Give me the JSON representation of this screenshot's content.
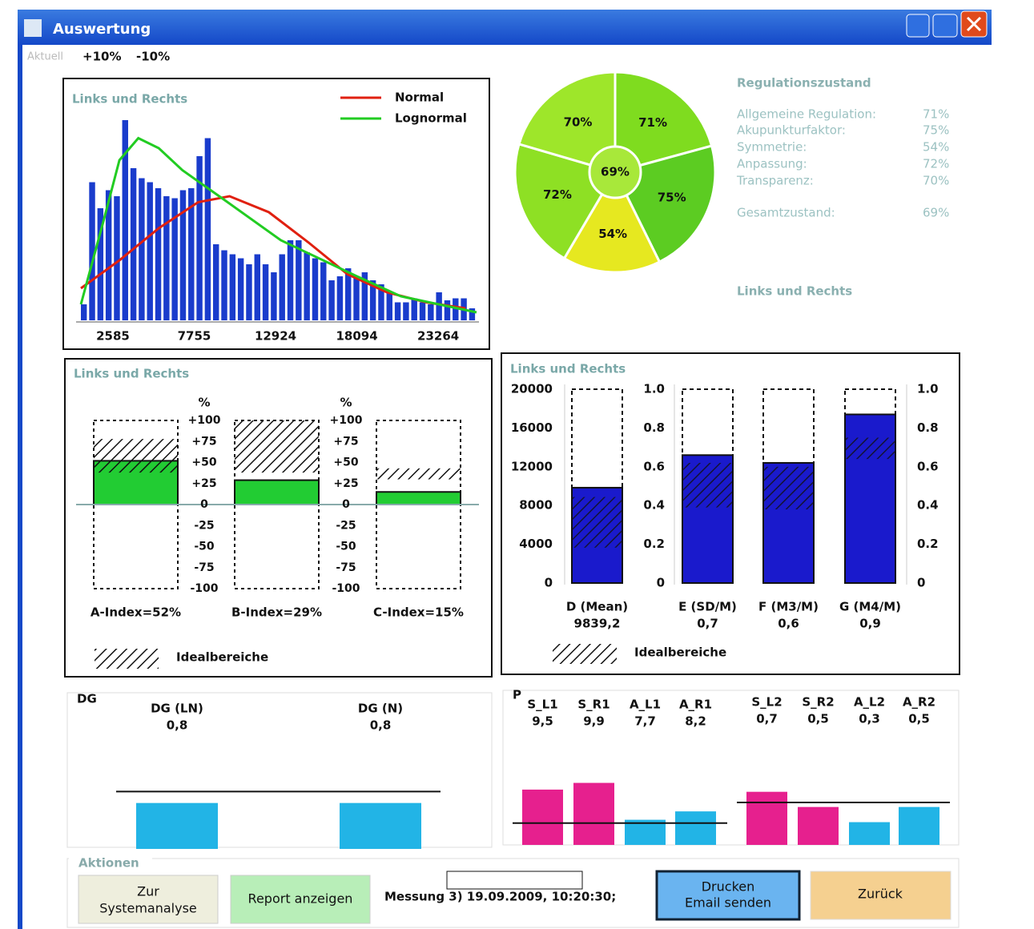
{
  "window": {
    "title": "Auswertung",
    "toolbar": [
      "Aktuell",
      "+10%",
      "-10%"
    ]
  },
  "chart_data": [
    {
      "type": "histogram",
      "title": "Links und Rechts",
      "bins": [
        500,
        1025,
        1550,
        2075,
        2600,
        3125,
        3650,
        4175,
        4700,
        5225,
        5750,
        6275,
        6800,
        7325,
        7850,
        8375,
        8900,
        9425,
        9950,
        10475,
        11000,
        11525,
        12050,
        12575,
        13100,
        13625,
        14150,
        14675,
        15200,
        15725,
        16250,
        16775,
        17300,
        17825,
        18350,
        18875,
        19400,
        19925,
        20450,
        20975,
        21500,
        22025,
        22550,
        23075,
        23600,
        24125,
        24650,
        25175,
        25700
      ],
      "values": [
        8,
        69,
        56,
        65,
        62,
        100,
        76,
        71,
        69,
        66,
        62,
        61,
        65,
        66,
        82,
        91,
        38,
        35,
        33,
        31,
        28,
        33,
        28,
        24,
        33,
        40,
        40,
        34,
        31,
        29,
        20,
        22,
        26,
        22,
        24,
        20,
        18,
        14,
        9,
        9,
        11,
        9,
        8,
        14,
        10,
        11,
        11,
        6
      ],
      "color": "#1a3ccc",
      "xlim": [
        500,
        25700
      ],
      "xticks": [
        2585,
        7755,
        12924,
        18094,
        23264
      ],
      "ylim": [
        0,
        100
      ],
      "lines": [
        {
          "name": "Normal",
          "color": "#e02010",
          "x": [
            552,
            3000,
            5500,
            8000,
            10000,
            12500,
            15000,
            17500,
            20000,
            22500,
            25000
          ],
          "values": [
            16,
            30,
            46,
            59,
            62,
            54,
            39,
            23,
            14,
            9,
            6
          ]
        },
        {
          "name": "Lognormal",
          "color": "#22cc22",
          "x": [
            552,
            2000,
            3000,
            4200,
            5500,
            7000,
            9700,
            13260,
            18094,
            20890,
            25700
          ],
          "values": [
            8,
            50,
            80,
            91,
            86,
            75,
            60,
            40,
            22,
            12,
            4
          ]
        }
      ]
    },
    {
      "type": "pie",
      "values": [
        71,
        75,
        54,
        72,
        70
      ],
      "value_labels": [
        "71%",
        "75%",
        "54%",
        "72%",
        "70%"
      ],
      "colors": [
        "#7fdc1f",
        "#5ccc22",
        "#e6e820",
        "#8ee024",
        "#9ee62a"
      ],
      "center": {
        "value": 69,
        "label": "69%",
        "color": "#a8e83a"
      }
    },
    {
      "type": "index_bar",
      "title": "Links und Rechts",
      "categories": [
        "A-Index=52%",
        "B-Index=29%",
        "C-Index=15%"
      ],
      "values": [
        52,
        29,
        15
      ],
      "ideal_ranges": [
        [
          38,
          78
        ],
        [
          38,
          100
        ],
        [
          30,
          43
        ]
      ],
      "color": "#22cc33",
      "y_label": "%",
      "ylim": [
        -100,
        100
      ],
      "yticks": [
        {
          "value": 100,
          "label": "+100"
        },
        {
          "value": 75,
          "label": "+75"
        },
        {
          "value": 50,
          "label": "+50"
        },
        {
          "value": 25,
          "label": "+25"
        },
        0,
        -25,
        -50,
        -75,
        -100
      ],
      "legend": "Idealbereiche"
    },
    {
      "type": "dual_axis_bar",
      "title": "Links und Rechts",
      "categories": [
        "D (Mean)",
        "E (SD/M)",
        "F (M3/M)",
        "G (M4/M)"
      ],
      "values": [
        9839.2,
        0.66,
        0.62,
        0.87
      ],
      "value_labels": [
        "9839,2",
        "0,7",
        "0,6",
        "0,9"
      ],
      "value_axes": [
        "y",
        "y2",
        "y2",
        "y2"
      ],
      "ideal_ranges": [
        [
          3650,
          8880
        ],
        [
          0.39,
          0.62
        ],
        [
          0.38,
          0.6
        ],
        [
          0.64,
          0.75
        ]
      ],
      "color": "#1a1acc",
      "ylim": [
        0,
        20000
      ],
      "yticks": [
        0,
        4000,
        8000,
        12000,
        16000,
        20000
      ],
      "y2lim": [
        0,
        1
      ],
      "y2ticks": [
        0,
        0.2,
        0.4,
        0.6,
        0.8,
        {
          "value": 1,
          "label": "1.0"
        }
      ],
      "legend": "Idealbereiche"
    },
    {
      "type": "bar",
      "title": "DG",
      "categories": [
        "DG (LN)",
        "DG (N)"
      ],
      "values": [
        0.8,
        0.8
      ],
      "value_labels": [
        "0,8",
        "0,8"
      ],
      "color": "#22b4e6",
      "ylim": [
        0,
        1.2
      ],
      "reference_line": 1
    },
    {
      "type": "grouped_bar",
      "title": "P",
      "groups": [
        {
          "categories": [
            "S_L1",
            "S_R1",
            "A_L1",
            "A_R1"
          ],
          "values": [
            9.5,
            9.9,
            7.7,
            8.2
          ],
          "value_labels": [
            "9,5",
            "9,9",
            "7,7",
            "8,2"
          ],
          "colors": [
            "#e6208e",
            "#e6208e",
            "#22b4e6",
            "#22b4e6"
          ],
          "ylim": [
            6.2,
            10.5
          ],
          "reference_line": 7.5
        },
        {
          "categories": [
            "S_L2",
            "S_R2",
            "A_L2",
            "A_R2"
          ],
          "values": [
            0.7,
            0.5,
            0.3,
            0.5
          ],
          "value_labels": [
            "0,7",
            "0,5",
            "0,3",
            "0,5"
          ],
          "colors": [
            "#e6208e",
            "#e6208e",
            "#22b4e6",
            "#22b4e6"
          ],
          "ylim": [
            0,
            0.95
          ],
          "reference_line": 0.56
        }
      ]
    }
  ],
  "regulation": {
    "title": "Regulationszustand",
    "items": [
      {
        "label": "Allgemeine Regulation:",
        "value": "71%"
      },
      {
        "label": "Akupunkturfaktor:",
        "value": "75%"
      },
      {
        "label": "Symmetrie:",
        "value": "54%"
      },
      {
        "label": "Anpassung:",
        "value": "72%"
      },
      {
        "label": "Transparenz:",
        "value": "70%"
      }
    ],
    "total": {
      "label": "Gesamtzustand:",
      "value": "69%"
    },
    "footer": "Links und Rechts"
  },
  "actions": {
    "title": "Aktionen",
    "buttons": [
      {
        "lines": [
          "Zur",
          "Systemanalyse"
        ]
      },
      {
        "lines": [
          "Report anzeigen"
        ]
      },
      {
        "lines": [
          "Drucken",
          "Email senden"
        ]
      },
      {
        "lines": [
          "Zurück"
        ]
      }
    ],
    "measurement": "Messung 3) 19.09.2009, 10:20:30;"
  }
}
